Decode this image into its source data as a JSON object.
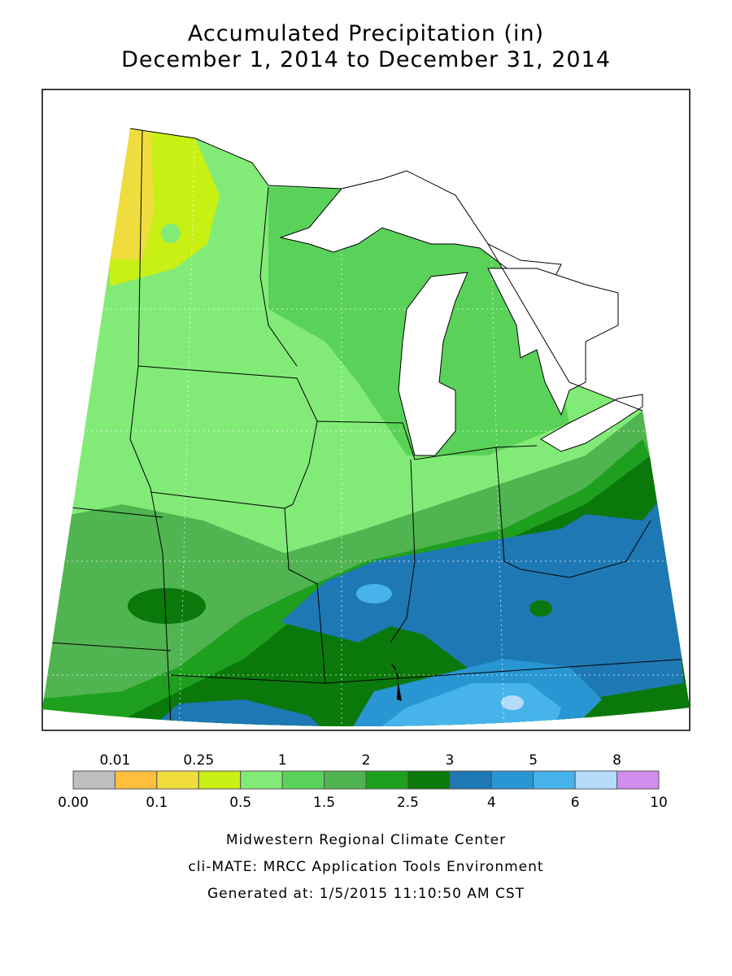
{
  "title": [
    "Accumulated Precipitation (in)",
    "December 1, 2014 to December 31, 2014"
  ],
  "legend": {
    "labels": [
      "0.00",
      "0.01",
      "0.1",
      "0.25",
      "0.5",
      "1",
      "1.5",
      "2",
      "2.5",
      "3",
      "4",
      "5",
      "6",
      "8",
      "10"
    ],
    "colors": [
      "#bebebe",
      "#ffbe3c",
      "#f0dc3c",
      "#c8f014",
      "#82eb78",
      "#5ad25a",
      "#50b450",
      "#1ea01e",
      "#0a780a",
      "#1e78b4",
      "#2896d2",
      "#46b4eb",
      "#b4dcfa",
      "#d28ceb"
    ]
  },
  "footer": [
    "Midwestern Regional Climate Center",
    "cli-MATE: MRCC Application Tools Environment",
    "Generated at: 1/5/2015 11:10:50 AM CST"
  ]
}
